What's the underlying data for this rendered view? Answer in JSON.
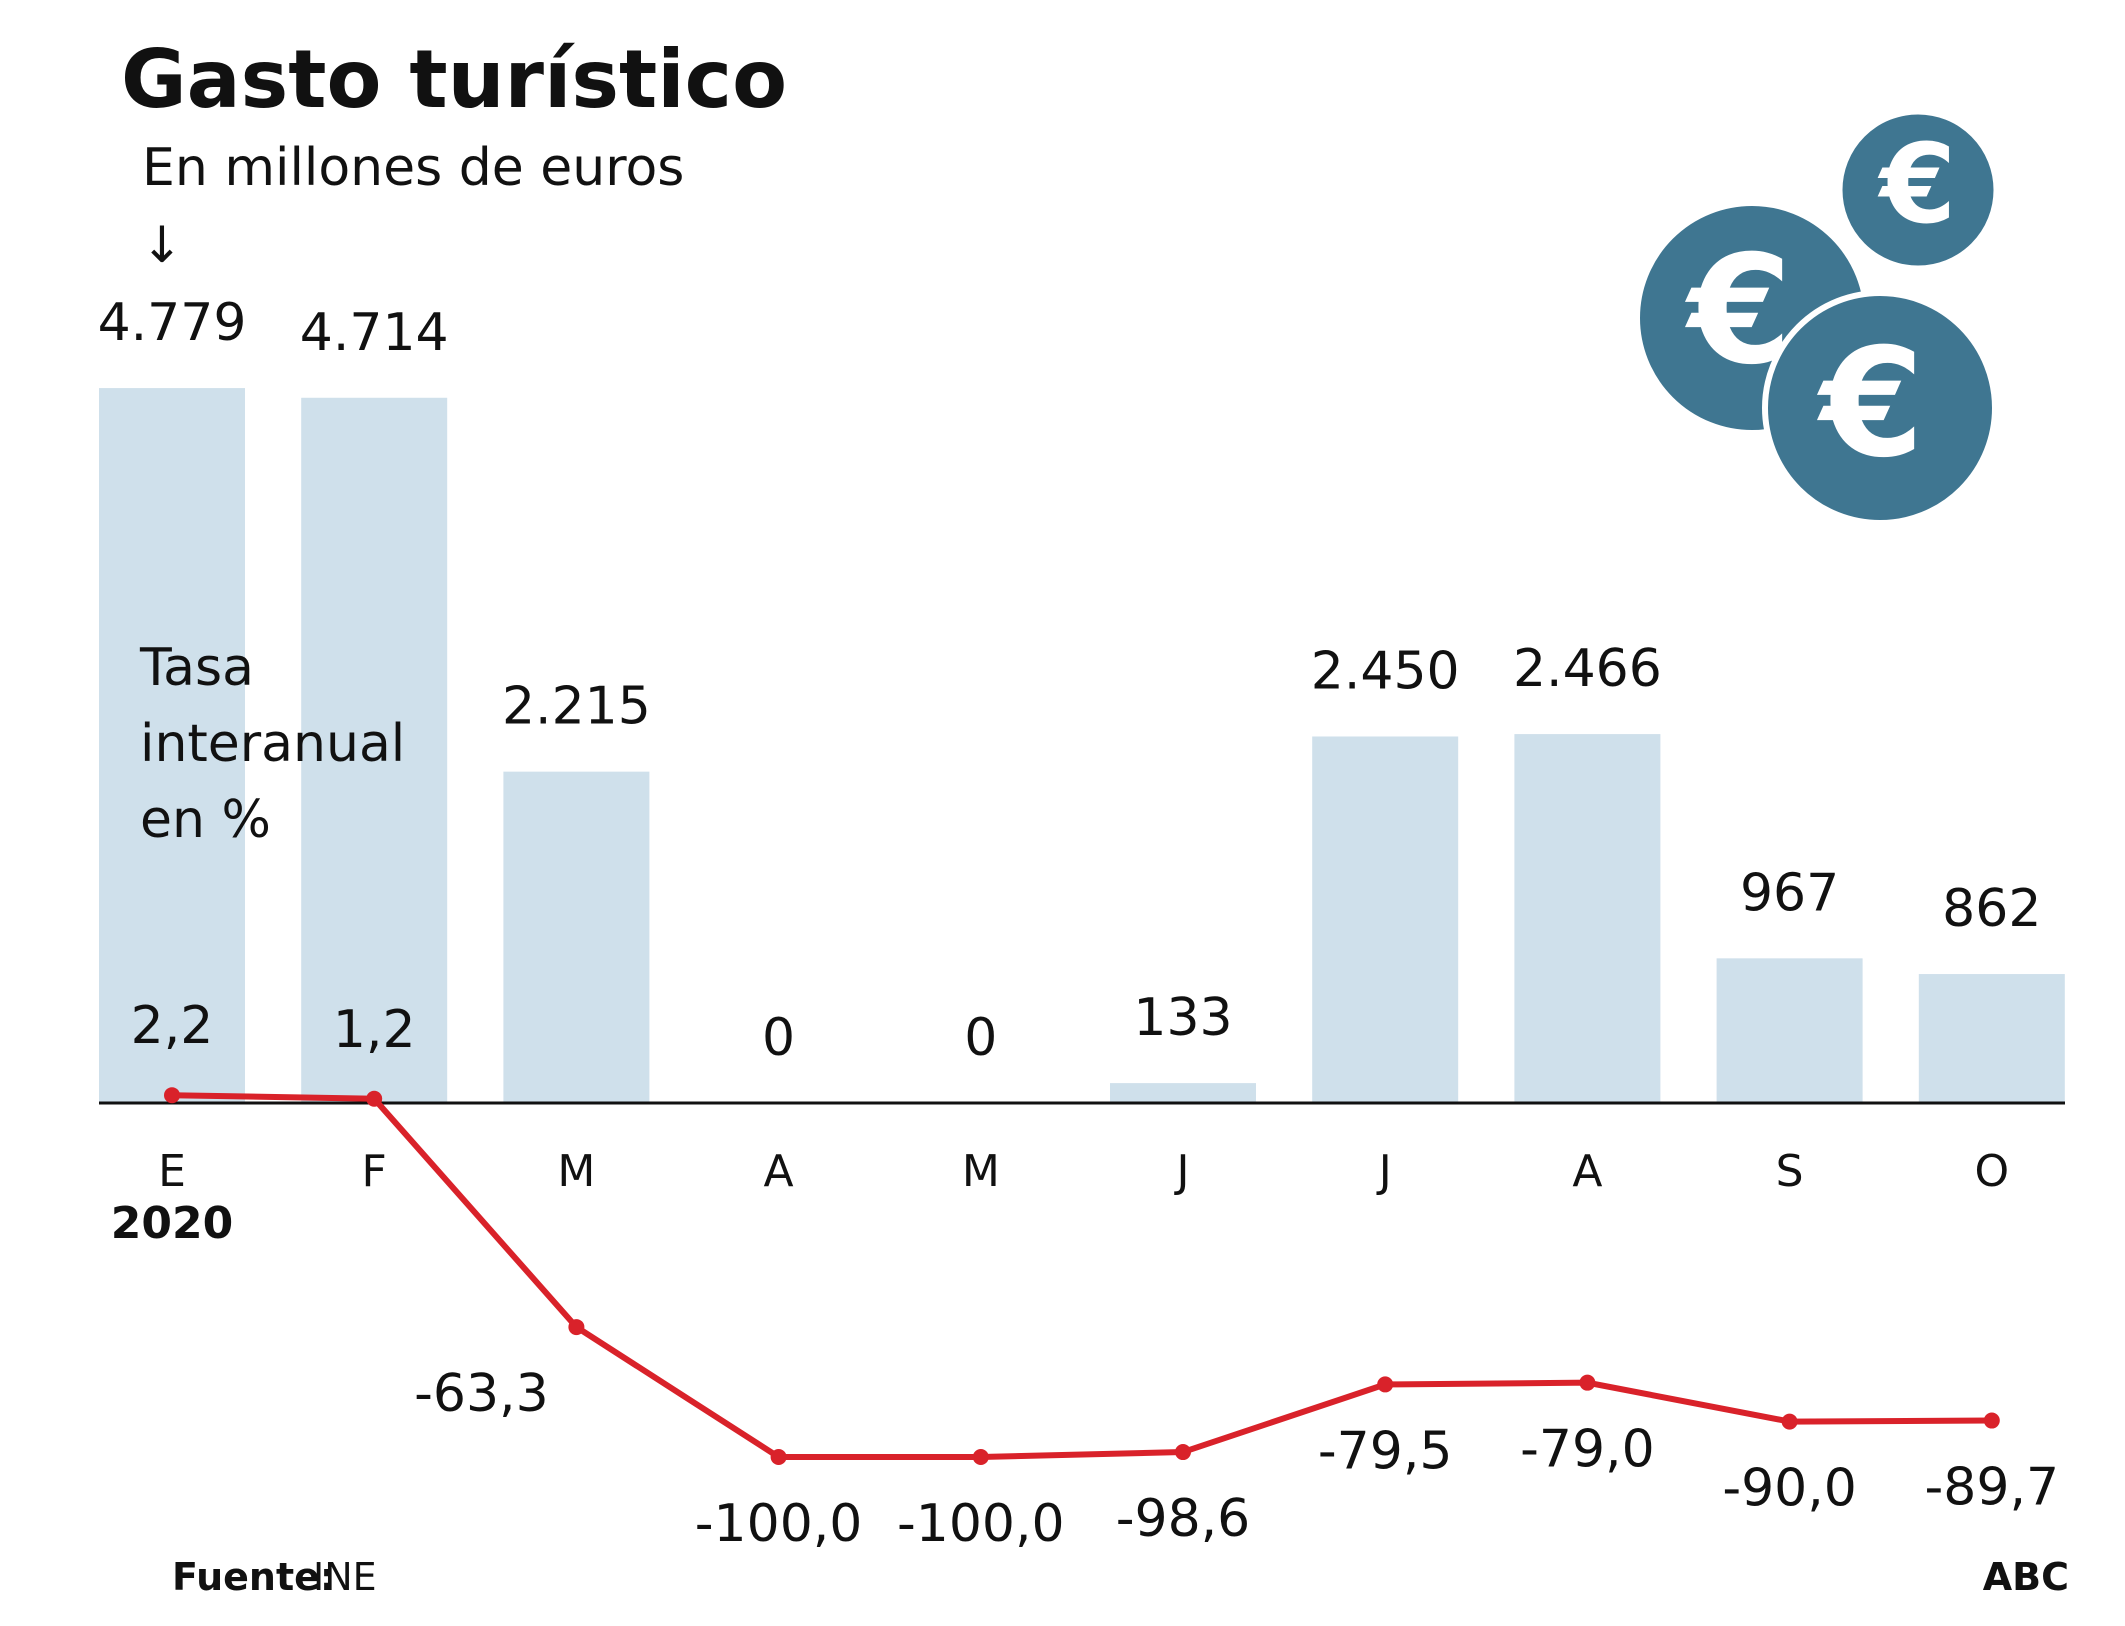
{
  "chart_data": {
    "type": "bar",
    "title": "Gasto turístico",
    "categories": [
      "E",
      "F",
      "M",
      "A",
      "M",
      "J",
      "J",
      "A",
      "S",
      "O"
    ],
    "year_label": "2020",
    "series": [
      {
        "name": "En millones de euros",
        "type": "bar",
        "color": "#cfe0eb",
        "values": [
          4779,
          4714,
          2215,
          0,
          0,
          133,
          2450,
          2466,
          967,
          862
        ],
        "value_labels": [
          "4.779",
          "4.714",
          "2.215",
          "0",
          "0",
          "133",
          "2.450",
          "2.466",
          "967",
          "862"
        ]
      },
      {
        "name": "Tasa interanual en %",
        "type": "line",
        "color": "#d9222a",
        "values": [
          2.2,
          1.2,
          -63.3,
          -100.0,
          -100.0,
          -98.6,
          -79.5,
          -79.0,
          -90.0,
          -89.7
        ],
        "value_labels": [
          "2,2",
          "1,2",
          "-63,3",
          "-100,0",
          "-100,0",
          "-98,6",
          "-79,5",
          "-79,0",
          "-90,0",
          "-89,7"
        ]
      }
    ],
    "source": {
      "label": "Fuente:",
      "text": "INE"
    },
    "credit": "ABC"
  }
}
